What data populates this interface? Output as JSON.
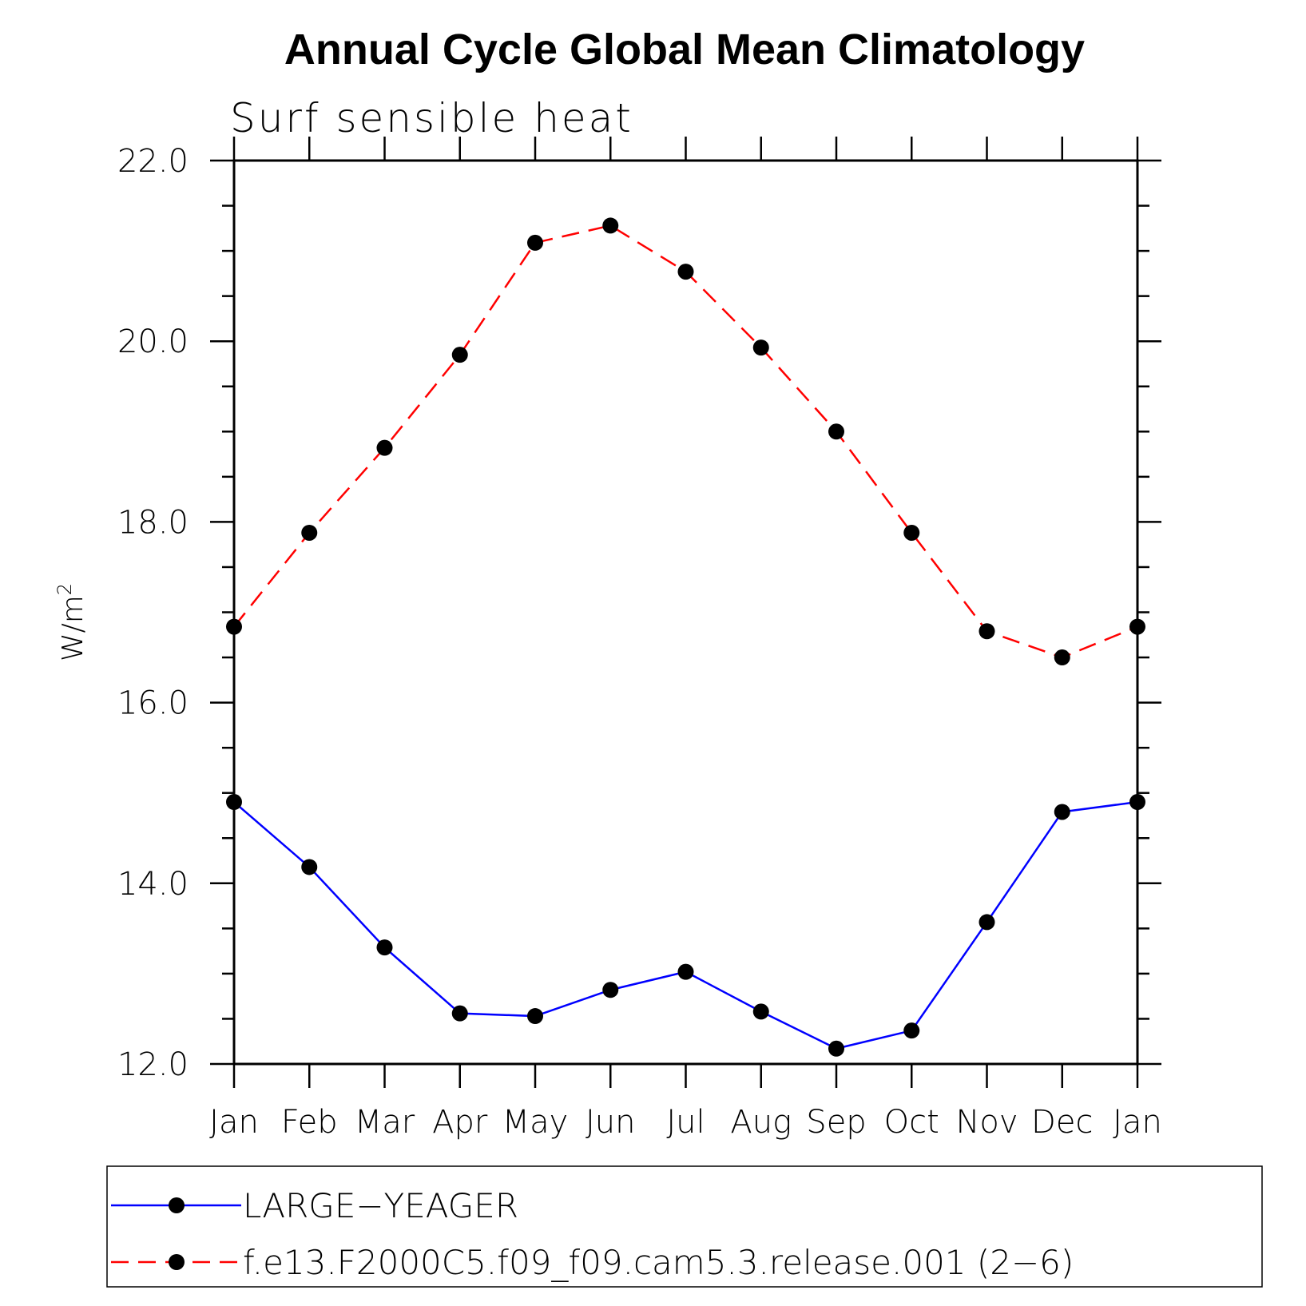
{
  "chart_data": {
    "type": "line",
    "title": "Annual Cycle Global Mean Climatology",
    "subtitle": "Surf sensible heat",
    "ylabel": "W/m",
    "ylabel_superscript": "2",
    "xlabel": "",
    "categories": [
      "Jan",
      "Feb",
      "Mar",
      "Apr",
      "May",
      "Jun",
      "Jul",
      "Aug",
      "Sep",
      "Oct",
      "Nov",
      "Dec",
      "Jan"
    ],
    "ylim": [
      12.0,
      22.0
    ],
    "yticks": [
      "12.0",
      "14.0",
      "16.0",
      "18.0",
      "20.0",
      "22.0"
    ],
    "grid": false,
    "legend_position": "bottom",
    "series": [
      {
        "name": "LARGE−YEAGER",
        "color": "#0000ff",
        "dashed": false,
        "values": [
          14.9,
          14.18,
          13.29,
          12.56,
          12.53,
          12.82,
          13.02,
          12.58,
          12.17,
          12.37,
          13.57,
          14.79,
          14.9
        ]
      },
      {
        "name": "f.e13.F2000C5.f09_f09.cam5.3.release.001 (2−6)",
        "color": "#ff0000",
        "dashed": true,
        "values": [
          16.84,
          17.88,
          18.82,
          19.85,
          21.09,
          21.28,
          20.77,
          19.93,
          19.0,
          17.88,
          16.79,
          16.5,
          16.84
        ]
      }
    ]
  }
}
